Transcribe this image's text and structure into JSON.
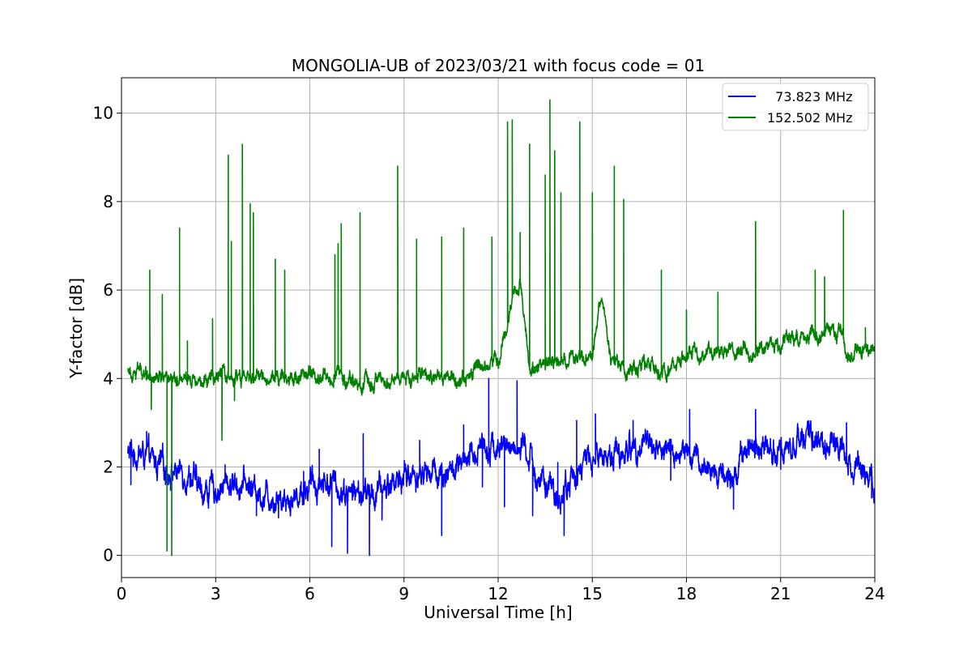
{
  "chart_data": {
    "type": "line",
    "title": "MONGOLIA-UB of 2023/03/21 with focus code = 01",
    "xlabel": "Universal Time [h]",
    "ylabel": "Y-factor [dB]",
    "xlim": [
      0,
      24
    ],
    "ylim": [
      -0.5,
      10.8
    ],
    "xticks": [
      0,
      3,
      6,
      9,
      12,
      15,
      18,
      21,
      24
    ],
    "xtick_labels": [
      "0",
      "3",
      "6",
      "9",
      "12",
      "15",
      "18",
      "21",
      "24"
    ],
    "yticks": [
      0,
      2,
      4,
      6,
      8,
      10
    ],
    "ytick_labels": [
      "0",
      "2",
      "4",
      "6",
      "8",
      "10"
    ],
    "grid": true,
    "legend_position": "top-right",
    "series": [
      {
        "name": "  73.823 MHz",
        "color": "#0000ff",
        "x_start": 0.2,
        "x_end": 24,
        "baseline_points": [
          [
            0.2,
            2.3
          ],
          [
            0.6,
            2.3
          ],
          [
            1.0,
            2.1
          ],
          [
            1.4,
            1.95
          ],
          [
            1.8,
            1.9
          ],
          [
            2.2,
            1.85
          ],
          [
            2.5,
            1.45
          ],
          [
            3.0,
            1.5
          ],
          [
            3.5,
            1.65
          ],
          [
            4.0,
            1.6
          ],
          [
            4.5,
            1.4
          ],
          [
            5.0,
            1.35
          ],
          [
            5.5,
            1.3
          ],
          [
            6.0,
            1.6
          ],
          [
            6.5,
            1.7
          ],
          [
            7.0,
            1.5
          ],
          [
            7.5,
            1.4
          ],
          [
            8.0,
            1.35
          ],
          [
            8.5,
            1.6
          ],
          [
            9.0,
            1.8
          ],
          [
            9.5,
            1.85
          ],
          [
            10.0,
            1.9
          ],
          [
            10.5,
            1.9
          ],
          [
            11.0,
            2.0
          ],
          [
            11.5,
            2.6
          ],
          [
            12.0,
            2.4
          ],
          [
            12.5,
            2.5
          ],
          [
            13.0,
            2.2
          ],
          [
            13.5,
            1.5
          ],
          [
            14.0,
            1.3
          ],
          [
            14.5,
            1.9
          ],
          [
            15.0,
            2.2
          ],
          [
            15.5,
            2.3
          ],
          [
            16.0,
            2.3
          ],
          [
            16.5,
            2.6
          ],
          [
            17.0,
            2.5
          ],
          [
            17.5,
            2.3
          ],
          [
            18.0,
            2.3
          ],
          [
            18.5,
            2.0
          ],
          [
            19.0,
            1.9
          ],
          [
            19.5,
            1.8
          ],
          [
            20.0,
            2.6
          ],
          [
            20.5,
            2.5
          ],
          [
            21.0,
            2.4
          ],
          [
            21.5,
            2.6
          ],
          [
            22.0,
            2.6
          ],
          [
            22.5,
            2.55
          ],
          [
            23.0,
            2.4
          ],
          [
            23.5,
            2.0
          ],
          [
            24.0,
            1.8
          ]
        ],
        "noise_amplitude": 0.35,
        "spikes": [
          [
            0.3,
            1.6
          ],
          [
            0.8,
            2.8
          ],
          [
            1.4,
            1.6
          ],
          [
            3.3,
            2.05
          ],
          [
            4.3,
            0.9
          ],
          [
            5.0,
            0.85
          ],
          [
            5.8,
            1.9
          ],
          [
            6.3,
            2.4
          ],
          [
            6.7,
            0.2
          ],
          [
            7.2,
            0.05
          ],
          [
            7.7,
            2.75
          ],
          [
            7.9,
            0.0
          ],
          [
            8.3,
            0.8
          ],
          [
            9.5,
            2.6
          ],
          [
            10.2,
            0.45
          ],
          [
            10.9,
            2.95
          ],
          [
            11.5,
            1.55
          ],
          [
            11.7,
            4.0
          ],
          [
            12.6,
            3.95
          ],
          [
            12.2,
            1.1
          ],
          [
            13.1,
            0.9
          ],
          [
            13.9,
            2.1
          ],
          [
            14.1,
            0.45
          ],
          [
            14.5,
            3.05
          ],
          [
            15.1,
            3.2
          ],
          [
            16.3,
            3.05
          ],
          [
            17.5,
            1.7
          ],
          [
            18.1,
            3.3
          ],
          [
            19.5,
            1.05
          ],
          [
            20.2,
            3.3
          ],
          [
            21.0,
            1.95
          ],
          [
            23.1,
            3.0
          ],
          [
            23.9,
            1.3
          ]
        ]
      },
      {
        "name": "152.502 MHz",
        "color": "#008000",
        "x_start": 0.2,
        "x_end": 24,
        "baseline_points": [
          [
            0.2,
            4.25
          ],
          [
            1.0,
            4.1
          ],
          [
            2.0,
            4.05
          ],
          [
            3.0,
            4.0
          ],
          [
            4.0,
            4.0
          ],
          [
            5.0,
            4.05
          ],
          [
            6.0,
            4.1
          ],
          [
            7.0,
            4.1
          ],
          [
            7.5,
            3.85
          ],
          [
            8.0,
            3.9
          ],
          [
            9.0,
            4.05
          ],
          [
            10.0,
            4.0
          ],
          [
            11.0,
            3.95
          ],
          [
            11.5,
            4.3
          ],
          [
            12.0,
            4.5
          ],
          [
            12.7,
            6.3
          ],
          [
            13.0,
            4.2
          ],
          [
            14.0,
            4.4
          ],
          [
            15.0,
            4.5
          ],
          [
            15.3,
            5.9
          ],
          [
            15.6,
            4.3
          ],
          [
            16.5,
            4.25
          ],
          [
            17.5,
            4.2
          ],
          [
            18.0,
            4.5
          ],
          [
            19.0,
            4.6
          ],
          [
            20.0,
            4.6
          ],
          [
            21.0,
            4.65
          ],
          [
            21.1,
            4.95
          ],
          [
            22.0,
            5.0
          ],
          [
            23.0,
            5.0
          ],
          [
            23.1,
            4.55
          ],
          [
            24.0,
            4.6
          ]
        ],
        "noise_amplitude": 0.2,
        "spikes": [
          [
            0.9,
            6.45
          ],
          [
            0.95,
            3.3
          ],
          [
            1.3,
            5.9
          ],
          [
            1.45,
            0.1
          ],
          [
            1.6,
            0.0
          ],
          [
            1.85,
            7.4
          ],
          [
            2.1,
            4.85
          ],
          [
            2.9,
            5.35
          ],
          [
            3.2,
            2.6
          ],
          [
            3.4,
            9.05
          ],
          [
            3.5,
            7.1
          ],
          [
            3.6,
            3.5
          ],
          [
            3.85,
            9.3
          ],
          [
            4.1,
            7.95
          ],
          [
            4.2,
            7.75
          ],
          [
            4.9,
            6.7
          ],
          [
            5.2,
            6.45
          ],
          [
            6.8,
            6.8
          ],
          [
            6.9,
            7.05
          ],
          [
            7.0,
            7.5
          ],
          [
            7.6,
            7.75
          ],
          [
            8.8,
            8.8
          ],
          [
            9.4,
            7.15
          ],
          [
            10.2,
            7.2
          ],
          [
            10.9,
            7.4
          ],
          [
            11.8,
            7.2
          ],
          [
            12.3,
            9.8
          ],
          [
            12.45,
            9.85
          ],
          [
            12.7,
            7.3
          ],
          [
            13.0,
            9.3
          ],
          [
            13.5,
            8.6
          ],
          [
            13.65,
            10.3
          ],
          [
            13.8,
            9.15
          ],
          [
            14.0,
            8.2
          ],
          [
            14.6,
            9.8
          ],
          [
            15.0,
            8.2
          ],
          [
            15.7,
            8.8
          ],
          [
            16.0,
            8.05
          ],
          [
            17.2,
            6.45
          ],
          [
            18.0,
            5.55
          ],
          [
            19.0,
            5.95
          ],
          [
            20.2,
            7.55
          ],
          [
            22.1,
            6.45
          ],
          [
            22.4,
            6.3
          ],
          [
            23.0,
            7.8
          ],
          [
            23.7,
            5.15
          ]
        ]
      }
    ]
  }
}
